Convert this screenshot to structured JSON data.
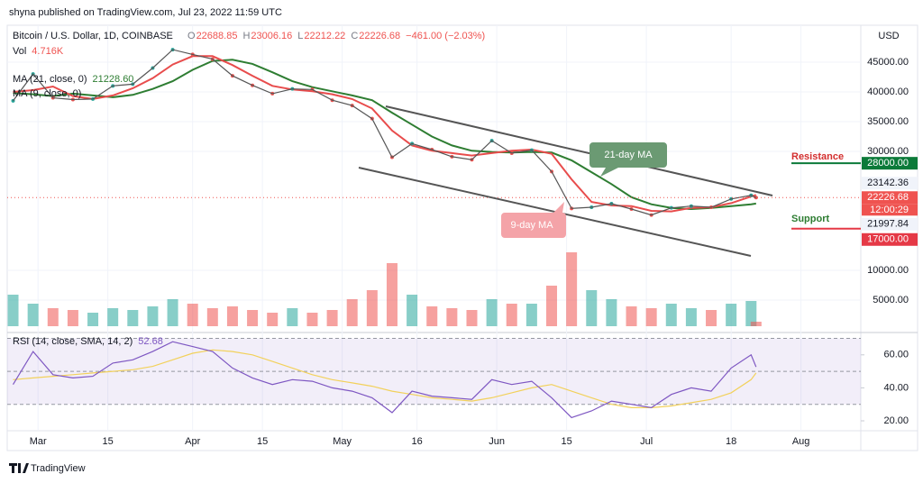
{
  "header": "shyna published on TradingView.com, Jul 23, 2022 11:59 UTC",
  "footer": "TradingView",
  "chart_data": {
    "type": "line",
    "symbol": "Bitcoin / U.S. Dollar, 1D, COINBASE",
    "ohlc": [
      {
        "label": "O",
        "value": 22688.85
      },
      {
        "label": "H",
        "value": 23006.16
      },
      {
        "label": "L",
        "value": 22212.22
      },
      {
        "label": "C",
        "value": 22226.68
      }
    ],
    "change": "−461.00 (−2.03%)",
    "currency": "USD",
    "x": [
      "2022-02-24",
      "2022-02-28",
      "2022-03-04",
      "2022-03-08",
      "2022-03-12",
      "2022-03-16",
      "2022-03-20",
      "2022-03-24",
      "2022-03-28",
      "2022-04-01",
      "2022-04-05",
      "2022-04-09",
      "2022-04-13",
      "2022-04-17",
      "2022-04-21",
      "2022-04-25",
      "2022-04-29",
      "2022-05-03",
      "2022-05-07",
      "2022-05-11",
      "2022-05-15",
      "2022-05-19",
      "2022-05-23",
      "2022-05-27",
      "2022-05-31",
      "2022-06-04",
      "2022-06-08",
      "2022-06-12",
      "2022-06-16",
      "2022-06-20",
      "2022-06-24",
      "2022-06-28",
      "2022-07-02",
      "2022-07-06",
      "2022-07-10",
      "2022-07-14",
      "2022-07-18",
      "2022-07-22",
      "2022-07-23"
    ],
    "xlim": [
      "2022-02-23",
      "2022-08-13"
    ],
    "xticks": [
      {
        "value": "2022-03-01",
        "label": "Mar"
      },
      {
        "value": "2022-03-15",
        "label": "15"
      },
      {
        "value": "2022-04-01",
        "label": "Apr"
      },
      {
        "value": "2022-04-15",
        "label": "15"
      },
      {
        "value": "2022-05-01",
        "label": "May"
      },
      {
        "value": "2022-05-16",
        "label": "16"
      },
      {
        "value": "2022-06-01",
        "label": "Jun"
      },
      {
        "value": "2022-06-15",
        "label": "15"
      },
      {
        "value": "2022-07-01",
        "label": "Jul"
      },
      {
        "value": "2022-07-18",
        "label": "18"
      },
      {
        "value": "2022-08-01",
        "label": "Aug"
      }
    ],
    "ylim": [
      150,
      50900
    ],
    "yticks": [
      {
        "value": 5000,
        "label": "5000.00"
      },
      {
        "value": 10000,
        "label": "10000.00"
      },
      {
        "value": 30000,
        "label": "30000.00"
      },
      {
        "value": 35000,
        "label": "35000.00"
      },
      {
        "value": 40000,
        "label": "40000.00"
      },
      {
        "value": 45000,
        "label": "45000.00"
      }
    ],
    "grid": true,
    "up_color": "#26a69a",
    "down_color": "#ef5350",
    "price": {
      "color": "#555555",
      "values": [
        38500,
        43000,
        39000,
        38700,
        38800,
        41000,
        41300,
        44000,
        47100,
        46300,
        45500,
        42700,
        41100,
        39700,
        40500,
        40400,
        38600,
        37700,
        35500,
        29000,
        31300,
        30300,
        29100,
        28600,
        31800,
        29700,
        30200,
        26600,
        20400,
        20600,
        21200,
        20300,
        19300,
        20500,
        20800,
        20600,
        22000,
        22600,
        22226.68
      ]
    },
    "ma": [
      {
        "name": "MA (21, close, 0)",
        "legend_value": "21228.60",
        "color": "#2e7d32",
        "values": [
          39800,
          39600,
          39300,
          39700,
          39400,
          39100,
          39500,
          40500,
          41800,
          43700,
          45200,
          45400,
          44700,
          43300,
          41800,
          40800,
          40100,
          39400,
          38600,
          36500,
          34500,
          32500,
          31000,
          30100,
          29900,
          29800,
          29900,
          29800,
          28500,
          26500,
          24500,
          22300,
          21100,
          20500,
          20300,
          20500,
          20800,
          21100,
          21228.6
        ]
      },
      {
        "name": "MA (9, close, 0)",
        "color": "#e84c4c",
        "values": [
          40000,
          40300,
          40900,
          39300,
          38800,
          39400,
          40600,
          42300,
          44600,
          46000,
          46000,
          44500,
          42700,
          41000,
          40400,
          40100,
          39600,
          38800,
          37200,
          33500,
          31000,
          30100,
          29700,
          29300,
          29700,
          30100,
          30300,
          29600,
          25300,
          21500,
          20900,
          20800,
          20000,
          19900,
          20500,
          20600,
          21300,
          22400,
          22670
        ]
      }
    ],
    "volume": {
      "name": "Vol",
      "legend_value": "4.716K",
      "ylim": [
        0,
        100
      ],
      "values": [
        35,
        25,
        20,
        18,
        15,
        20,
        18,
        22,
        30,
        25,
        20,
        22,
        18,
        15,
        20,
        15,
        18,
        30,
        40,
        70,
        35,
        22,
        20,
        18,
        30,
        25,
        25,
        45,
        82,
        40,
        30,
        22,
        20,
        25,
        20,
        18,
        25,
        28,
        5
      ]
    },
    "price_tags": [
      {
        "value": 23142.36,
        "bg": "#f0f3fa",
        "fg": "#131722"
      },
      {
        "value": 22226.68,
        "bg": "#ef5350",
        "fg": "#ffffff"
      },
      {
        "value": 21997.84,
        "bg": "#f0f3fa",
        "fg": "#131722"
      },
      {
        "value": 28000,
        "label": "28000.00",
        "bg": "#0b7a39",
        "fg": "#ffffff"
      },
      {
        "value": 17000,
        "label": "17000.00",
        "bg": "#e53946",
        "fg": "#ffffff"
      }
    ],
    "countdown": "12:00:29",
    "annotations": {
      "resistance": "Resistance",
      "support": "Support",
      "ma21": "21-day MA",
      "ma9": "9-day MA"
    },
    "rsi": {
      "name": "RSI (14, close, SMA, 14, 2)",
      "legend_value": "52.68",
      "color": "#7e57c2",
      "values": [
        42,
        62,
        48,
        46,
        47,
        55,
        57,
        62,
        68,
        65,
        62,
        52,
        46,
        42,
        45,
        44,
        40,
        38,
        34,
        25,
        38,
        35,
        34,
        33,
        45,
        42,
        44,
        34,
        22,
        26,
        32,
        30,
        28,
        36,
        40,
        38,
        52,
        60,
        52.68
      ],
      "sma": {
        "color": "#f2d15b",
        "values": [
          45,
          46,
          47,
          48,
          49,
          50,
          51,
          53,
          57,
          61,
          63,
          62,
          60,
          56,
          52,
          48,
          45,
          43,
          41,
          38,
          36,
          34,
          33,
          32,
          34,
          37,
          40,
          42,
          38,
          34,
          30,
          28,
          28,
          29,
          31,
          33,
          37,
          45,
          49
        ]
      },
      "ylim": [
        14,
        73
      ],
      "yticks": [
        {
          "value": 20,
          "label": "20.00"
        },
        {
          "value": 40,
          "label": "40.00"
        },
        {
          "value": 60,
          "label": "60.00"
        }
      ],
      "levels": [
        30,
        50,
        70
      ]
    }
  }
}
